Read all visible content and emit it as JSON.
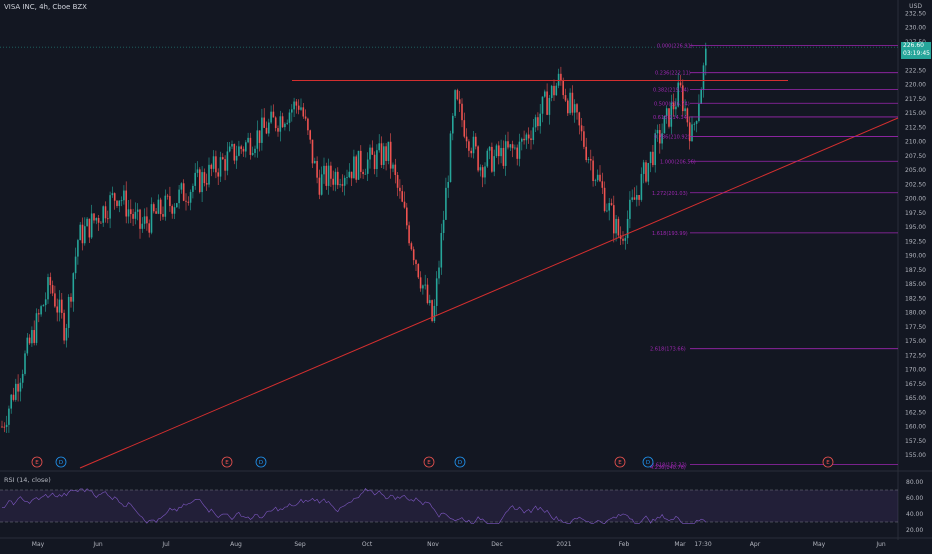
{
  "header": {
    "title": "VISA INC, 4h, Cboe BZX",
    "currency": "USD"
  },
  "price_badge": {
    "price": "226.60",
    "countdown": "03:19:45"
  },
  "colors": {
    "background": "#131722",
    "bull": "#26a69a",
    "bear": "#ef5350",
    "fib": "#9c27b0",
    "trend": "#d32f2f",
    "rsi": "#7e57c2"
  },
  "y_axis_labels": [
    "232.50",
    "230.00",
    "227.50",
    "222.50",
    "220.00",
    "217.50",
    "215.00",
    "212.50",
    "210.00",
    "207.50",
    "205.00",
    "202.50",
    "200.00",
    "197.50",
    "195.00",
    "192.50",
    "190.00",
    "187.50",
    "185.00",
    "182.50",
    "180.00",
    "177.50",
    "175.00",
    "172.50",
    "170.00",
    "167.50",
    "165.00",
    "162.50",
    "160.00",
    "157.50",
    "155.00"
  ],
  "x_axis_labels": [
    "May",
    "Jun",
    "Jul",
    "Aug",
    "Sep",
    "Oct",
    "Nov",
    "Dec",
    "2021",
    "Feb",
    "Mar",
    "17:30",
    "Apr",
    "May",
    "Jun"
  ],
  "events": [
    {
      "type": "E",
      "color": "#ef5350"
    },
    {
      "type": "D",
      "color": "#2196f3"
    },
    {
      "type": "E",
      "color": "#ef5350"
    },
    {
      "type": "D",
      "color": "#2196f3"
    },
    {
      "type": "E",
      "color": "#ef5350"
    },
    {
      "type": "D",
      "color": "#2196f3"
    },
    {
      "type": "E",
      "color": "#ef5350"
    },
    {
      "type": "D",
      "color": "#2196f3"
    },
    {
      "type": "E",
      "color": "#ef5350"
    }
  ],
  "fib_levels": [
    {
      "label": "0.000(226.91)",
      "value": 226.91
    },
    {
      "label": "0.236(222.11)",
      "value": 222.11
    },
    {
      "label": "0.382(219.14)",
      "value": 219.14
    },
    {
      "label": "0.500(216.74)",
      "value": 216.74
    },
    {
      "label": "0.618(214.34)",
      "value": 214.34
    },
    {
      "label": "0.786(210.92)",
      "value": 210.92
    },
    {
      "label": "1.000(206.56)",
      "value": 206.56
    },
    {
      "label": "1.272(201.03)",
      "value": 201.03
    },
    {
      "label": "1.618(193.99)",
      "value": 193.99
    },
    {
      "label": "2.618(173.66)",
      "value": 173.66
    },
    {
      "label": "3.618(153.33)",
      "value": 153.33
    },
    {
      "label": "4.236(140.76)",
      "value": 140.76
    }
  ],
  "rsi": {
    "label": "RSI (14, close)",
    "axis": [
      "80.00",
      "60.00",
      "40.00",
      "20.00"
    ],
    "upper": 70,
    "lower": 30
  },
  "chart_data": {
    "type": "candlestick",
    "title": "VISA INC, 4h, Cboe BZX",
    "ylim": [
      153,
      233
    ],
    "y_tick_values": [
      232.5,
      230,
      227.5,
      222.5,
      220,
      217.5,
      215,
      212.5,
      210,
      207.5,
      205,
      202.5,
      200,
      197.5,
      195,
      192.5,
      190,
      187.5,
      185,
      182.5,
      180,
      177.5,
      175,
      172.5,
      170,
      167.5,
      165,
      162.5,
      160,
      157.5,
      155
    ],
    "last_price": 226.6,
    "swing_points": [
      {
        "x": "start of May",
        "y": 160
      },
      {
        "x": "mid May",
        "y": 185
      },
      {
        "x": "late May",
        "y": 177
      },
      {
        "x": "early Jun",
        "y": 193
      },
      {
        "x": "early Jul",
        "y": 201
      },
      {
        "x": "late Jul",
        "y": 195
      },
      {
        "x": "early Sep",
        "y": 217
      },
      {
        "x": "mid Sep",
        "y": 203
      },
      {
        "x": "early Oct",
        "y": 208
      },
      {
        "x": "late Oct",
        "y": 178
      },
      {
        "x": "early Nov",
        "y": 217
      },
      {
        "x": "mid Nov",
        "y": 206
      },
      {
        "x": "late Dec",
        "y": 209
      },
      {
        "x": "early Jan",
        "y": 221
      },
      {
        "x": "late Jan",
        "y": 193
      },
      {
        "x": "mid Feb",
        "y": 207
      },
      {
        "x": "late Feb",
        "y": 219
      },
      {
        "x": "early Mar",
        "y": 211
      },
      {
        "x": "mid Mar",
        "y": 227
      }
    ]
  }
}
